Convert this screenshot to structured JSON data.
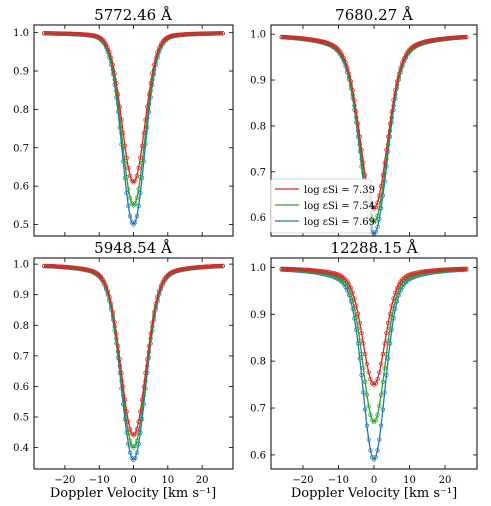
{
  "figure": {
    "xlabel": "Doppler Velocity [km s⁻¹]",
    "legend_location": "lower-left of panel 2"
  },
  "series_meta": [
    {
      "name": "log εSi = 7.39",
      "color": "#d62728"
    },
    {
      "name": "log εSi = 7.54",
      "color": "#2ca02c"
    },
    {
      "name": "log εSi = 7.69",
      "color": "#1f77b4"
    }
  ],
  "chart_data": [
    {
      "type": "line",
      "title": "5772.46 Å",
      "xlim": [
        -29,
        29
      ],
      "ylim": [
        0.47,
        1.02
      ],
      "xticks": [
        -20,
        -10,
        0,
        10,
        20
      ],
      "xticklabels_visible": false,
      "yticks": [
        0.5,
        0.6,
        0.7,
        0.8,
        0.9,
        1.0
      ],
      "yticklabels": [
        "0.5",
        "0.6",
        "0.7",
        "0.8",
        "0.9",
        "1.0"
      ],
      "profile": {
        "x_range": [
          -26,
          26
        ],
        "core_width_kms": 3.3,
        "wing_width_kms": 5.2,
        "wing_fraction": 0.1
      },
      "series": [
        {
          "name": "log εSi = 7.39",
          "min_flux": 0.61
        },
        {
          "name": "log εSi = 7.54",
          "min_flux": 0.55
        },
        {
          "name": "log εSi = 7.69",
          "min_flux": 0.5
        }
      ],
      "legend": false
    },
    {
      "type": "line",
      "title": "7680.27 Å",
      "xlim": [
        -29,
        29
      ],
      "ylim": [
        0.56,
        1.02
      ],
      "xticks": [
        -20,
        -10,
        0,
        10,
        20
      ],
      "xticklabels_visible": false,
      "yticks": [
        0.6,
        0.7,
        0.8,
        0.9,
        1.0
      ],
      "yticklabels": [
        "0.6",
        "0.7",
        "0.8",
        "0.9",
        "1.0"
      ],
      "profile": {
        "x_range": [
          -26,
          26
        ],
        "core_width_kms": 3.6,
        "wing_width_kms": 7.5,
        "wing_fraction": 0.2
      },
      "series": [
        {
          "name": "log εSi = 7.39",
          "min_flux": 0.62
        },
        {
          "name": "log εSi = 7.54",
          "min_flux": 0.59
        },
        {
          "name": "log εSi = 7.69",
          "min_flux": 0.565
        }
      ],
      "legend": true
    },
    {
      "type": "line",
      "title": "5948.54 Å",
      "xlim": [
        -29,
        29
      ],
      "ylim": [
        0.33,
        1.02
      ],
      "xticks": [
        -20,
        -10,
        0,
        10,
        20
      ],
      "xticklabels": [
        "−20",
        "−10",
        "0",
        "10",
        "20"
      ],
      "yticks": [
        0.4,
        0.5,
        0.6,
        0.7,
        0.8,
        0.9,
        1.0
      ],
      "yticklabels": [
        "0.4",
        "0.5",
        "0.6",
        "0.7",
        "0.8",
        "0.9",
        "1.0"
      ],
      "profile": {
        "x_range": [
          -26,
          26
        ],
        "core_width_kms": 3.5,
        "wing_width_kms": 7.0,
        "wing_fraction": 0.15
      },
      "series": [
        {
          "name": "log εSi = 7.39",
          "min_flux": 0.44
        },
        {
          "name": "log εSi = 7.54",
          "min_flux": 0.4
        },
        {
          "name": "log εSi = 7.69",
          "min_flux": 0.36
        }
      ],
      "legend": false
    },
    {
      "type": "line",
      "title": "12288.15 Å",
      "xlim": [
        -29,
        29
      ],
      "ylim": [
        0.57,
        1.02
      ],
      "xticks": [
        -20,
        -10,
        0,
        10,
        20
      ],
      "xticklabels": [
        "−20",
        "−10",
        "0",
        "10",
        "20"
      ],
      "yticks": [
        0.6,
        0.7,
        0.8,
        0.9,
        1.0
      ],
      "yticklabels": [
        "0.6",
        "0.7",
        "0.8",
        "0.9",
        "1.0"
      ],
      "profile": {
        "x_range": [
          -26,
          26
        ],
        "core_width_kms": 3.0,
        "wing_width_kms": 6.5,
        "wing_fraction": 0.2
      },
      "series": [
        {
          "name": "log εSi = 7.39",
          "min_flux": 0.75
        },
        {
          "name": "log εSi = 7.54",
          "min_flux": 0.67
        },
        {
          "name": "log εSi = 7.69",
          "min_flux": 0.59
        }
      ],
      "legend": false
    }
  ]
}
